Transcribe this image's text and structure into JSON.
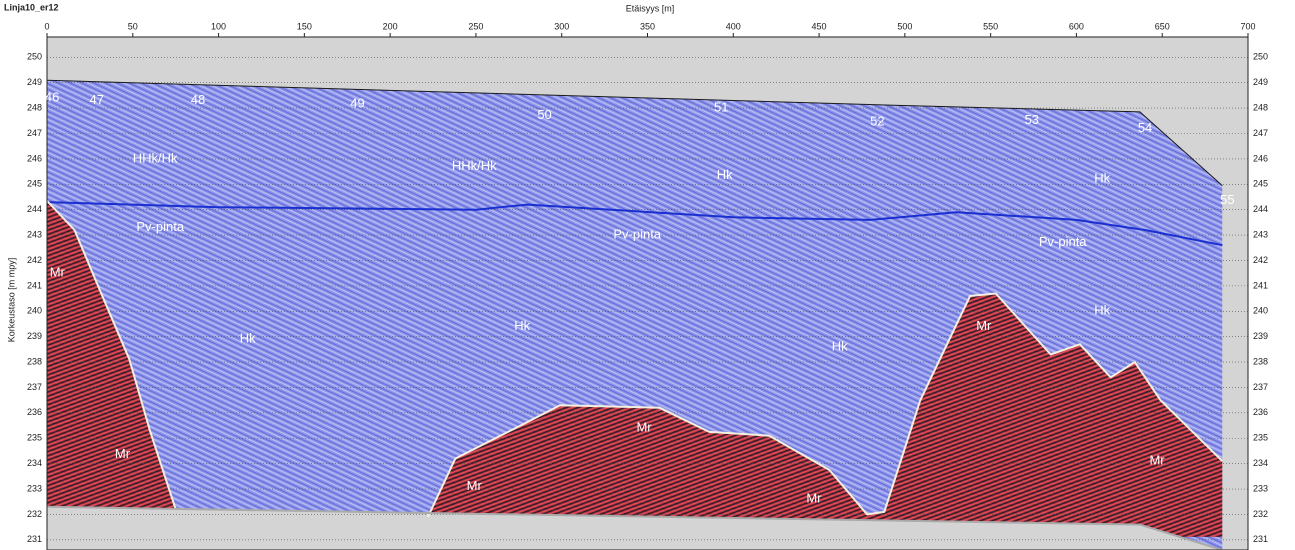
{
  "chart_data": {
    "type": "profile",
    "title": "Linja10_er12",
    "x_label": "Etäisyys [m]",
    "y_label": "Korkeustaso [m mpy]",
    "xlim": [
      0,
      700
    ],
    "xticks": [
      0,
      50,
      100,
      150,
      200,
      250,
      300,
      350,
      400,
      450,
      500,
      550,
      600,
      650,
      700
    ],
    "ylim": [
      230.6,
      250.8
    ],
    "yticks": [
      231,
      232,
      233,
      234,
      235,
      236,
      237,
      238,
      239,
      240,
      241,
      242,
      243,
      244,
      245,
      246,
      247,
      248,
      249,
      250
    ],
    "grid": true,
    "series": [
      {
        "color": "#1a1a1a",
        "x": [
          0,
          474,
          637,
          685
        ],
        "values": [
          249.1,
          248.15,
          247.85,
          244.95
        ]
      },
      {
        "color": "#1a2fd0",
        "x": [
          0,
          100,
          250,
          280,
          400,
          480,
          530,
          600,
          640,
          685
        ],
        "values": [
          244.3,
          244.1,
          244.0,
          244.2,
          243.7,
          243.6,
          243.9,
          243.6,
          243.2,
          242.6
        ]
      },
      {
        "color": "#f4f0e0",
        "x": [
          0,
          16,
          31,
          48,
          60,
          75
        ],
        "values": [
          244.35,
          243.2,
          240.8,
          238.1,
          235.3,
          232.2
        ]
      },
      {
        "color": "#f4f0e0",
        "x": [
          222,
          238,
          276,
          299,
          357,
          386,
          421,
          456,
          478,
          488,
          509,
          538,
          553,
          585,
          602,
          620,
          634,
          649,
          685
        ],
        "values": [
          231.9,
          234.2,
          235.5,
          236.3,
          236.2,
          235.25,
          235.1,
          233.75,
          232.0,
          232.1,
          236.5,
          240.6,
          240.7,
          238.3,
          238.7,
          237.4,
          238.0,
          236.5,
          234.1
        ]
      },
      {
        "color": "#aaaaaa",
        "x": [
          0,
          637,
          685
        ],
        "values": [
          232.3,
          231.6,
          230.6
        ]
      }
    ],
    "annotations": [
      {
        "text": "46",
        "x": 3,
        "y": 248.4
      },
      {
        "text": "47",
        "x": 29,
        "y": 248.3
      },
      {
        "text": "48",
        "x": 88,
        "y": 248.3
      },
      {
        "text": "49",
        "x": 181,
        "y": 248.15
      },
      {
        "text": "50",
        "x": 290,
        "y": 247.7
      },
      {
        "text": "51",
        "x": 393,
        "y": 248.0
      },
      {
        "text": "52",
        "x": 484,
        "y": 247.45
      },
      {
        "text": "53",
        "x": 574,
        "y": 247.5
      },
      {
        "text": "54",
        "x": 640,
        "y": 247.2
      },
      {
        "text": "55",
        "x": 688,
        "y": 244.35
      },
      {
        "text": "HHk/Hk",
        "x": 63,
        "y": 246.0
      },
      {
        "text": "HHk/Hk",
        "x": 249,
        "y": 245.7
      },
      {
        "text": "Hk",
        "x": 395,
        "y": 245.35
      },
      {
        "text": "Hk",
        "x": 615,
        "y": 245.2
      },
      {
        "text": "Pv-pinta",
        "x": 66,
        "y": 243.3
      },
      {
        "text": "Pv-pinta",
        "x": 344,
        "y": 243.0
      },
      {
        "text": "Pv-pinta",
        "x": 592,
        "y": 242.7
      },
      {
        "text": "Mr",
        "x": 6,
        "y": 241.5
      },
      {
        "text": "Hk",
        "x": 117,
        "y": 238.9
      },
      {
        "text": "Hk",
        "x": 277,
        "y": 239.4
      },
      {
        "text": "Hk",
        "x": 462,
        "y": 238.6
      },
      {
        "text": "Hk",
        "x": 615,
        "y": 240.0
      },
      {
        "text": "Mr",
        "x": 546,
        "y": 239.4
      },
      {
        "text": "Mr",
        "x": 44,
        "y": 234.35
      },
      {
        "text": "Mr",
        "x": 249,
        "y": 233.1
      },
      {
        "text": "Mr",
        "x": 348,
        "y": 235.4
      },
      {
        "text": "Mr",
        "x": 447,
        "y": 232.6
      },
      {
        "text": "Mr",
        "x": 647,
        "y": 234.1
      }
    ]
  }
}
